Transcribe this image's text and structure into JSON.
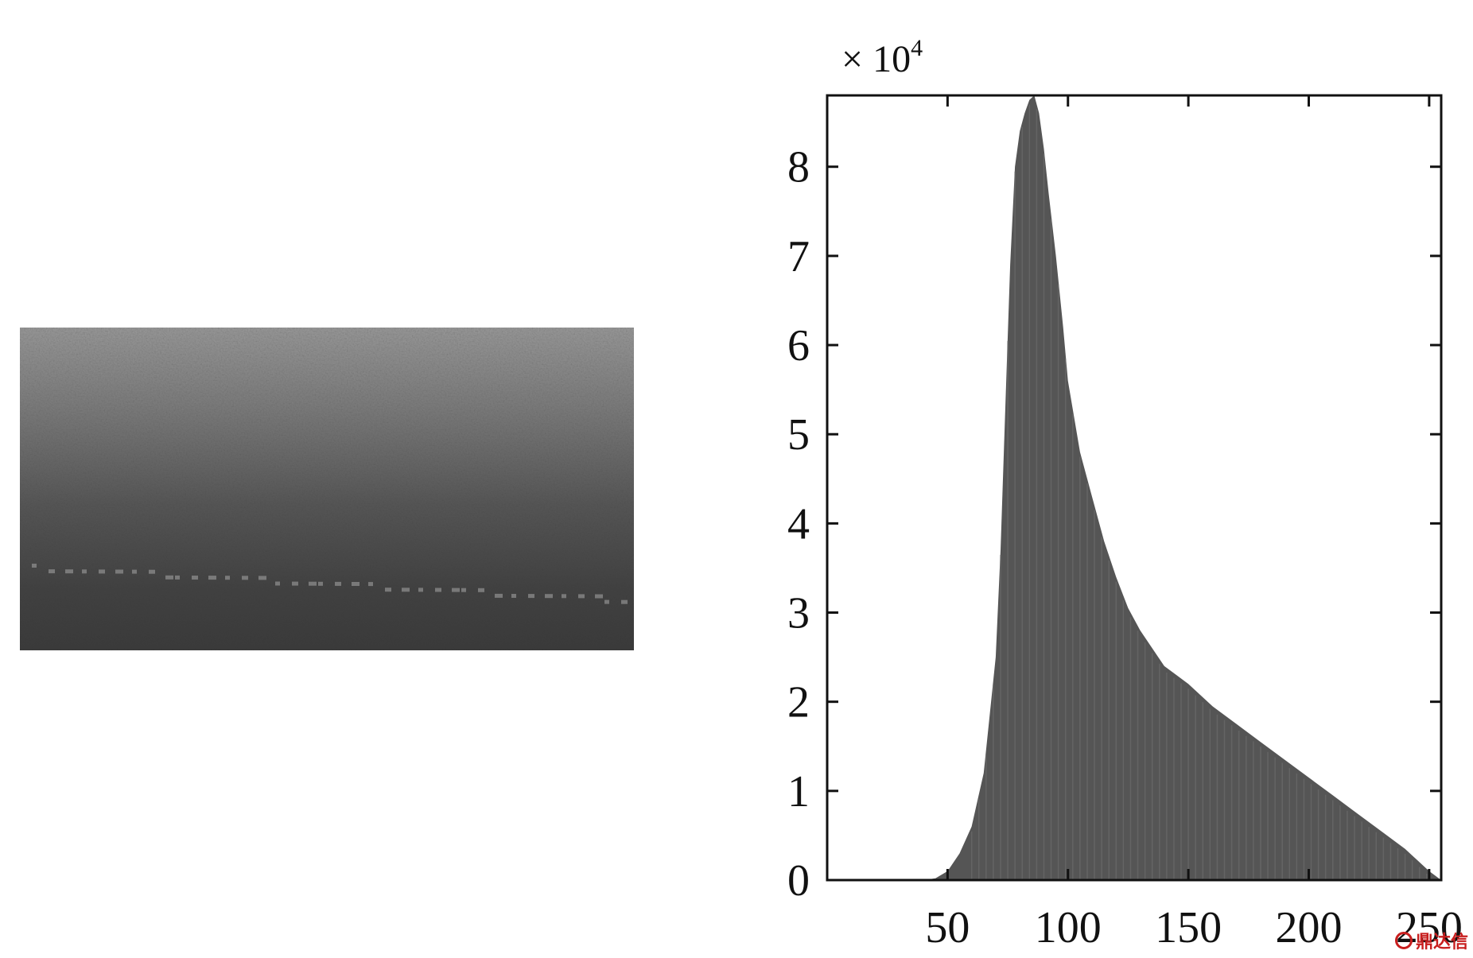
{
  "watermark": {
    "text": "鼎达信"
  },
  "chart_data": [
    {
      "type": "image",
      "content": "grayscale texture image"
    },
    {
      "type": "area",
      "title": "",
      "xlabel": "",
      "ylabel": "",
      "y_multiplier": "× 10",
      "y_exponent": "4",
      "xlim": [
        0,
        255
      ],
      "ylim": [
        0,
        8.8
      ],
      "xticks": [
        50,
        100,
        150,
        200,
        250
      ],
      "yticks": [
        0,
        1,
        2,
        3,
        4,
        5,
        6,
        7,
        8
      ],
      "grid": false,
      "legend": "none",
      "fill_color": "#555555",
      "x": [
        40,
        45,
        50,
        55,
        60,
        65,
        70,
        72,
        74,
        76,
        78,
        80,
        82,
        84,
        86,
        88,
        90,
        92,
        95,
        98,
        100,
        105,
        110,
        115,
        120,
        125,
        130,
        135,
        140,
        145,
        150,
        160,
        170,
        180,
        190,
        200,
        210,
        220,
        230,
        240,
        250,
        255
      ],
      "y": [
        0,
        0.02,
        0.1,
        0.3,
        0.6,
        1.2,
        2.5,
        3.7,
        5.3,
        6.9,
        8.0,
        8.4,
        8.6,
        8.75,
        8.8,
        8.6,
        8.2,
        7.7,
        7.0,
        6.2,
        5.6,
        4.8,
        4.3,
        3.8,
        3.4,
        3.05,
        2.8,
        2.6,
        2.4,
        2.3,
        2.2,
        1.95,
        1.75,
        1.55,
        1.35,
        1.15,
        0.95,
        0.75,
        0.55,
        0.35,
        0.1,
        0
      ]
    }
  ]
}
